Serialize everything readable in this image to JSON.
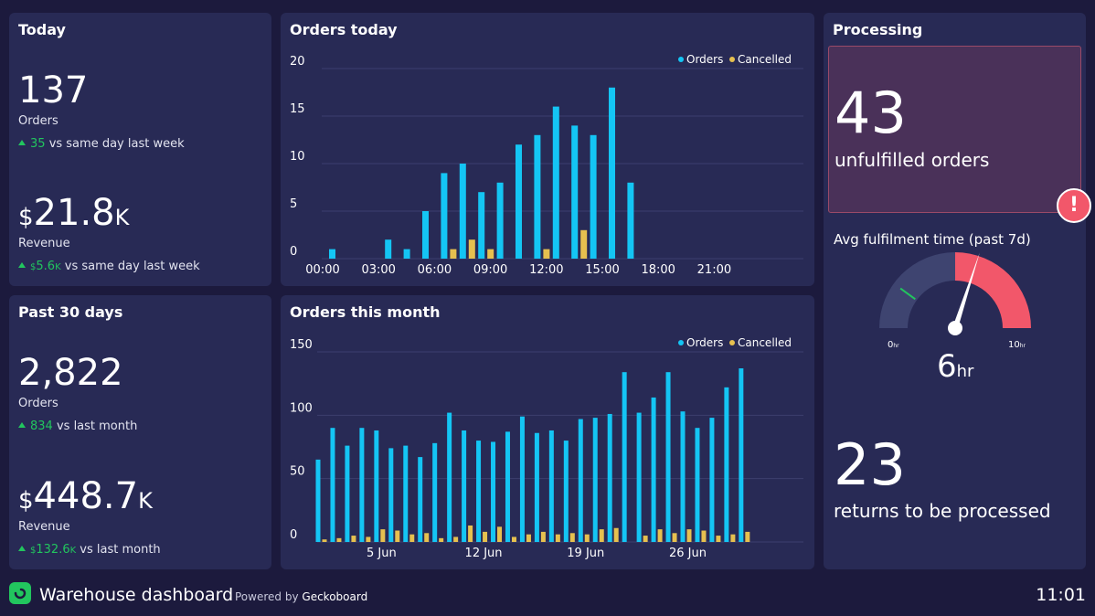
{
  "today": {
    "title": "Today",
    "orders_value": "137",
    "orders_label": "Orders",
    "orders_delta": "35",
    "orders_compare": "vs same day last week",
    "revenue_symbol": "$",
    "revenue_value": "21.8",
    "revenue_suffix": "K",
    "revenue_label": "Revenue",
    "revenue_delta_symbol": "$",
    "revenue_delta": "5.6",
    "revenue_delta_suffix": "K",
    "revenue_compare": "vs same day last week"
  },
  "past30": {
    "title": "Past 30 days",
    "orders_value": "2,822",
    "orders_label": "Orders",
    "orders_delta": "834",
    "orders_compare": "vs last month",
    "revenue_symbol": "$",
    "revenue_value": "448.7",
    "revenue_suffix": "K",
    "revenue_label": "Revenue",
    "revenue_delta_symbol": "$",
    "revenue_delta": "132.6",
    "revenue_delta_suffix": "K",
    "revenue_compare": "vs last month"
  },
  "processing": {
    "title": "Processing",
    "unfulfilled_value": "43",
    "unfulfilled_label": "unfulfilled orders",
    "alert_glyph": "!",
    "gauge_title": "Avg fulfilment time (past 7d)",
    "gauge_value": "6",
    "gauge_unit": "hr",
    "gauge_min": "0",
    "gauge_min_unit": "hr",
    "gauge_max": "10",
    "gauge_max_unit": "hr",
    "gauge_number": 6,
    "gauge_range": [
      0,
      10
    ],
    "gauge_red_from": 5,
    "gauge_marker": 2,
    "returns_value": "23",
    "returns_label": "returns to be processed"
  },
  "footer": {
    "logo_icon": "geckoboard-logo-icon",
    "title": "Warehouse dashboard",
    "powered_prefix": "Powered by",
    "powered_brand": "Geckoboard",
    "clock": "11:01"
  },
  "colors": {
    "orders": "#14c5f4",
    "cancelled": "#e6c04f",
    "positive": "#22c55e",
    "gauge_track": "#3e4470",
    "gauge_red": "#f2576a"
  },
  "chart_data": [
    {
      "type": "bar",
      "title": "Orders today",
      "x": [
        0,
        1,
        2,
        3,
        4,
        5,
        6,
        7,
        8,
        9,
        10,
        11,
        12,
        13,
        14,
        15,
        16,
        17,
        18,
        19,
        20,
        21,
        22,
        23
      ],
      "xtick_values": [
        0,
        3,
        6,
        9,
        12,
        15,
        18,
        21
      ],
      "xtick_labels": [
        "00:00",
        "03:00",
        "06:00",
        "09:00",
        "12:00",
        "15:00",
        "18:00",
        "21:00"
      ],
      "series": [
        {
          "name": "Orders",
          "values": [
            1,
            0,
            0,
            2,
            1,
            5,
            9,
            10,
            7,
            8,
            12,
            13,
            16,
            14,
            13,
            18,
            8,
            0,
            0,
            0,
            0,
            0,
            0,
            0
          ]
        },
        {
          "name": "Cancelled",
          "values": [
            0,
            0,
            0,
            0,
            0,
            0,
            1,
            2,
            1,
            0,
            0,
            1,
            0,
            3,
            0,
            0,
            0,
            0,
            0,
            0,
            0,
            0,
            0,
            0
          ]
        }
      ],
      "yticks": [
        0,
        5,
        10,
        15,
        20
      ],
      "ylim": [
        0,
        20
      ],
      "legend": "top-right"
    },
    {
      "type": "bar",
      "title": "Orders this month",
      "x": [
        1,
        2,
        3,
        4,
        5,
        6,
        7,
        8,
        9,
        10,
        11,
        12,
        13,
        14,
        15,
        16,
        17,
        18,
        19,
        20,
        21,
        22,
        23,
        24,
        25,
        26,
        27,
        28,
        29,
        30
      ],
      "xtick_values": [
        5,
        12,
        19,
        26
      ],
      "xtick_labels": [
        "5 Jun",
        "12 Jun",
        "19 Jun",
        "26 Jun"
      ],
      "series": [
        {
          "name": "Orders",
          "values": [
            65,
            90,
            76,
            90,
            88,
            74,
            76,
            67,
            78,
            102,
            88,
            80,
            79,
            87,
            99,
            86,
            88,
            80,
            97,
            98,
            101,
            134,
            102,
            114,
            134,
            103,
            90,
            98,
            122,
            137
          ]
        },
        {
          "name": "Cancelled",
          "values": [
            2,
            3,
            5,
            4,
            10,
            9,
            6,
            7,
            3,
            4,
            13,
            8,
            12,
            4,
            6,
            8,
            6,
            7,
            6,
            10,
            11,
            0,
            5,
            10,
            7,
            10,
            9,
            5,
            6,
            8
          ]
        }
      ],
      "yticks": [
        0,
        50,
        100,
        150
      ],
      "ylim": [
        0,
        150
      ],
      "legend": "top-right"
    }
  ]
}
